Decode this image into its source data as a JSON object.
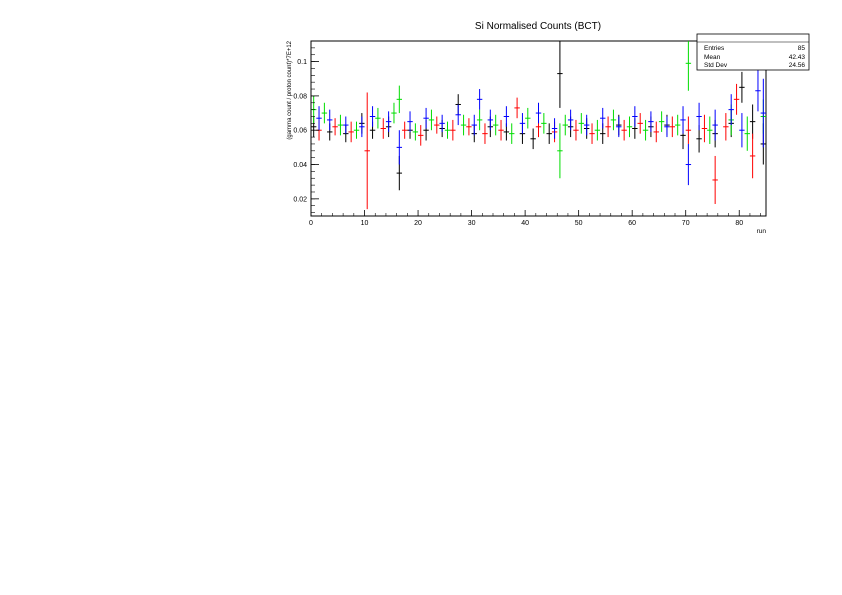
{
  "chart_data": {
    "type": "scatter",
    "title": "Si Normalised Counts (BCT)",
    "xlabel": "run",
    "ylabel": "(gamma count / proton count)*7E+12",
    "xlim": [
      0,
      85
    ],
    "ylim": [
      0.01,
      0.112
    ],
    "x_ticks": [
      0,
      10,
      20,
      30,
      40,
      50,
      60,
      70,
      80
    ],
    "y_ticks": [
      0.02,
      0.04,
      0.06,
      0.08
    ],
    "y_tick_labels": [
      "0.02",
      "0.04",
      "0.06",
      "0.08",
      "0.1"
    ],
    "y_ticks_all": [
      0.02,
      0.04,
      0.06,
      0.08,
      0.1
    ],
    "grid": false,
    "stats_box": {
      "rows": [
        {
          "label": "Entries",
          "value": "85"
        },
        {
          "label": "Mean",
          "value": "42.43"
        },
        {
          "label": "Std Dev",
          "value": "24.56"
        }
      ]
    },
    "series": [
      {
        "color": "#000000",
        "values": [
          [
            0.5,
            0.062,
            0.006
          ],
          [
            3.5,
            0.059,
            0.005
          ],
          [
            6.5,
            0.058,
            0.005
          ],
          [
            9.5,
            0.064,
            0.006
          ],
          [
            11.5,
            0.06,
            0.005
          ],
          [
            14.5,
            0.062,
            0.006
          ],
          [
            16.5,
            0.035,
            0.01
          ],
          [
            18.5,
            0.06,
            0.005
          ],
          [
            21.5,
            0.06,
            0.006
          ],
          [
            24.5,
            0.061,
            0.005
          ],
          [
            27.5,
            0.075,
            0.006
          ],
          [
            30.5,
            0.058,
            0.005
          ],
          [
            33.5,
            0.062,
            0.006
          ],
          [
            36.5,
            0.059,
            0.005
          ],
          [
            39.5,
            0.058,
            0.006
          ],
          [
            41.5,
            0.055,
            0.006
          ],
          [
            44.5,
            0.058,
            0.006
          ],
          [
            46.5,
            0.093,
            0.02
          ],
          [
            48.5,
            0.062,
            0.006
          ],
          [
            51.5,
            0.061,
            0.006
          ],
          [
            54.5,
            0.058,
            0.006
          ],
          [
            57.5,
            0.063,
            0.006
          ],
          [
            60.5,
            0.061,
            0.006
          ],
          [
            63.5,
            0.062,
            0.006
          ],
          [
            66.5,
            0.063,
            0.006
          ],
          [
            69.5,
            0.057,
            0.008
          ],
          [
            72.5,
            0.055,
            0.008
          ],
          [
            75.5,
            0.058,
            0.008
          ],
          [
            78.5,
            0.064,
            0.008
          ],
          [
            80.5,
            0.085,
            0.009
          ],
          [
            82.5,
            0.065,
            0.01
          ],
          [
            84.5,
            0.052,
            0.012
          ]
        ]
      },
      {
        "color": "#ff0000",
        "values": [
          [
            1.5,
            0.06,
            0.006
          ],
          [
            4.5,
            0.062,
            0.005
          ],
          [
            7.5,
            0.059,
            0.006
          ],
          [
            10.5,
            0.048,
            0.034
          ],
          [
            13.5,
            0.061,
            0.006
          ],
          [
            17.5,
            0.06,
            0.005
          ],
          [
            20.5,
            0.057,
            0.006
          ],
          [
            23.5,
            0.063,
            0.005
          ],
          [
            26.5,
            0.06,
            0.006
          ],
          [
            29.5,
            0.062,
            0.005
          ],
          [
            32.5,
            0.058,
            0.006
          ],
          [
            35.5,
            0.06,
            0.006
          ],
          [
            38.5,
            0.073,
            0.006
          ],
          [
            42.5,
            0.062,
            0.006
          ],
          [
            45.5,
            0.059,
            0.006
          ],
          [
            49.5,
            0.06,
            0.006
          ],
          [
            52.5,
            0.058,
            0.006
          ],
          [
            55.5,
            0.062,
            0.006
          ],
          [
            58.5,
            0.06,
            0.006
          ],
          [
            61.5,
            0.064,
            0.006
          ],
          [
            64.5,
            0.059,
            0.006
          ],
          [
            67.5,
            0.062,
            0.006
          ],
          [
            70.5,
            0.06,
            0.008
          ],
          [
            73.5,
            0.061,
            0.008
          ],
          [
            75.5,
            0.031,
            0.014
          ],
          [
            77.5,
            0.062,
            0.008
          ],
          [
            79.5,
            0.078,
            0.009
          ],
          [
            82.5,
            0.045,
            0.013
          ]
        ]
      },
      {
        "color": "#00dd00",
        "values": [
          [
            0.5,
            0.072,
            0.008
          ],
          [
            2.5,
            0.07,
            0.006
          ],
          [
            5.5,
            0.063,
            0.006
          ],
          [
            8.5,
            0.06,
            0.005
          ],
          [
            12.5,
            0.067,
            0.006
          ],
          [
            15.5,
            0.07,
            0.006
          ],
          [
            16.5,
            0.078,
            0.008
          ],
          [
            19.5,
            0.059,
            0.005
          ],
          [
            22.5,
            0.066,
            0.006
          ],
          [
            25.5,
            0.06,
            0.005
          ],
          [
            28.5,
            0.063,
            0.006
          ],
          [
            31.5,
            0.066,
            0.006
          ],
          [
            34.5,
            0.063,
            0.006
          ],
          [
            37.5,
            0.058,
            0.006
          ],
          [
            40.5,
            0.067,
            0.006
          ],
          [
            43.5,
            0.064,
            0.006
          ],
          [
            46.5,
            0.048,
            0.016
          ],
          [
            47.5,
            0.063,
            0.006
          ],
          [
            50.5,
            0.064,
            0.006
          ],
          [
            53.5,
            0.06,
            0.006
          ],
          [
            56.5,
            0.066,
            0.006
          ],
          [
            59.5,
            0.062,
            0.006
          ],
          [
            62.5,
            0.06,
            0.006
          ],
          [
            65.5,
            0.065,
            0.006
          ],
          [
            68.5,
            0.063,
            0.006
          ],
          [
            70.5,
            0.099,
            0.016
          ],
          [
            74.5,
            0.06,
            0.008
          ],
          [
            78.5,
            0.066,
            0.009
          ],
          [
            81.5,
            0.058,
            0.01
          ],
          [
            84.5,
            0.068,
            0.01
          ]
        ]
      },
      {
        "color": "#0000ff",
        "values": [
          [
            1.5,
            0.067,
            0.007
          ],
          [
            3.5,
            0.066,
            0.006
          ],
          [
            6.5,
            0.063,
            0.005
          ],
          [
            9.5,
            0.062,
            0.006
          ],
          [
            11.5,
            0.068,
            0.006
          ],
          [
            14.5,
            0.065,
            0.006
          ],
          [
            16.5,
            0.05,
            0.01
          ],
          [
            18.5,
            0.065,
            0.006
          ],
          [
            21.5,
            0.067,
            0.006
          ],
          [
            24.5,
            0.064,
            0.005
          ],
          [
            27.5,
            0.069,
            0.006
          ],
          [
            30.5,
            0.063,
            0.006
          ],
          [
            31.5,
            0.078,
            0.006
          ],
          [
            33.5,
            0.066,
            0.006
          ],
          [
            36.5,
            0.068,
            0.006
          ],
          [
            39.5,
            0.064,
            0.006
          ],
          [
            42.5,
            0.07,
            0.006
          ],
          [
            45.5,
            0.061,
            0.006
          ],
          [
            48.5,
            0.066,
            0.006
          ],
          [
            51.5,
            0.063,
            0.006
          ],
          [
            54.5,
            0.067,
            0.006
          ],
          [
            57.5,
            0.062,
            0.006
          ],
          [
            60.5,
            0.068,
            0.006
          ],
          [
            63.5,
            0.065,
            0.006
          ],
          [
            66.5,
            0.062,
            0.006
          ],
          [
            69.5,
            0.066,
            0.008
          ],
          [
            70.5,
            0.04,
            0.012
          ],
          [
            72.5,
            0.068,
            0.008
          ],
          [
            75.5,
            0.063,
            0.009
          ],
          [
            78.5,
            0.072,
            0.009
          ],
          [
            80.5,
            0.06,
            0.01
          ],
          [
            83.5,
            0.083,
            0.012
          ],
          [
            84.5,
            0.07,
            0.02
          ]
        ]
      }
    ]
  }
}
